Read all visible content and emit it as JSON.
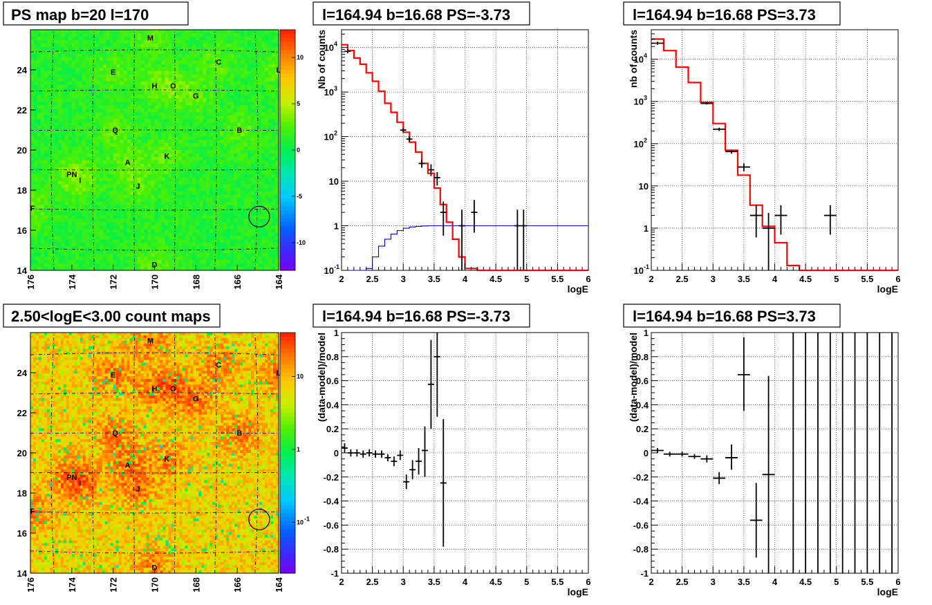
{
  "chart_data": [
    {
      "id": "ps-map",
      "type": "heatmap",
      "title": "PS map b=20 l=170",
      "x_ticks": [
        "176",
        "174",
        "172",
        "170",
        "168",
        "166",
        "164"
      ],
      "y_ticks": [
        "14",
        "16",
        "18",
        "20",
        "22",
        "24"
      ],
      "xlim": [
        176,
        164
      ],
      "ylim": [
        14,
        26
      ],
      "palette_ticks": [
        "10",
        "5",
        "0",
        "-5",
        "-10"
      ],
      "palette_range": [
        -13,
        13
      ],
      "colorscale": "linear",
      "base_level": 1.2,
      "sources": [
        {
          "label": "M",
          "l": 170.2,
          "b": 25.6
        },
        {
          "label": "C",
          "l": 166.9,
          "b": 24.4
        },
        {
          "label": "L",
          "l": 164.0,
          "b": 24.0
        },
        {
          "label": "E",
          "l": 172.0,
          "b": 23.9
        },
        {
          "label": "H",
          "l": 170.0,
          "b": 23.2
        },
        {
          "label": "O",
          "l": 169.1,
          "b": 23.2
        },
        {
          "label": "G",
          "l": 168.0,
          "b": 22.7
        },
        {
          "label": "Q",
          "l": 171.9,
          "b": 21.0
        },
        {
          "label": "B",
          "l": 165.9,
          "b": 21.0
        },
        {
          "label": "K",
          "l": 169.4,
          "b": 19.7
        },
        {
          "label": "A",
          "l": 171.3,
          "b": 19.4
        },
        {
          "label": "PN",
          "l": 174.0,
          "b": 18.8
        },
        {
          "label": "I",
          "l": 173.6,
          "b": 18.5
        },
        {
          "label": "J",
          "l": 170.8,
          "b": 18.2
        },
        {
          "label": "F",
          "l": 175.9,
          "b": 17.1
        },
        {
          "label": "D",
          "l": 170.0,
          "b": 14.3
        }
      ],
      "circle": {
        "l": 164.94,
        "b": 16.68
      }
    },
    {
      "id": "spec1",
      "type": "line",
      "title": "l=164.94 b=16.68 PS=-3.73",
      "xlabel": "logE",
      "ylabel": "Nb of counts",
      "xlim": [
        2,
        6
      ],
      "ylim": [
        0.1,
        25000
      ],
      "yscale": "log",
      "x_ticks": [
        "2",
        "2.5",
        "3",
        "3.5",
        "4",
        "4.5",
        "5",
        "5.5",
        "6"
      ],
      "y_ticks": [
        {
          "v": 0.1,
          "t": "10"
        },
        {
          "v": 1,
          "t": "1"
        },
        {
          "v": 10,
          "t": "10"
        },
        {
          "v": 100,
          "t": "10"
        },
        {
          "v": 1000,
          "t": "10"
        },
        {
          "v": 10000,
          "t": "10"
        }
      ],
      "y_tick_exponents": [
        "-1",
        "",
        "",
        "2",
        "3",
        "4"
      ],
      "model_edges": [
        2.0,
        2.1,
        2.2,
        2.3,
        2.4,
        2.5,
        2.6,
        2.7,
        2.8,
        2.9,
        3.0,
        3.1,
        3.2,
        3.3,
        3.4,
        3.5,
        3.6,
        3.7,
        3.8,
        3.9,
        4.0,
        4.1,
        4.2,
        4.3,
        6.0
      ],
      "model_values": [
        11500,
        8500,
        5800,
        4200,
        2700,
        1750,
        1050,
        560,
        350,
        210,
        125,
        75,
        45,
        25,
        15,
        7,
        3,
        1.2,
        0.5,
        0.2,
        0.11,
        0.11,
        0.09,
        0.09
      ],
      "step_edges": [
        2.0,
        2.1,
        2.2,
        2.3,
        2.4,
        2.5,
        2.6,
        2.7,
        2.8,
        2.9,
        3.0,
        3.1,
        3.2,
        3.3,
        3.4,
        3.5,
        3.6,
        3.7,
        3.8,
        3.9,
        4.0,
        4.1,
        4.2,
        6.0
      ],
      "step_values": [
        0.07,
        0.07,
        0.07,
        0.07,
        0.11,
        0.2,
        0.35,
        0.5,
        0.65,
        0.78,
        0.88,
        0.94,
        0.97,
        0.99,
        1.0,
        1.0,
        1.0,
        1.0,
        1.0,
        1.0,
        1.0,
        1.0,
        1.0
      ],
      "points": [
        {
          "x": 2.1,
          "y": 8200,
          "lo": 7400,
          "hi": 9000,
          "xw": 0.05
        },
        {
          "x": 3.0,
          "y": 140,
          "lo": 125,
          "hi": 155,
          "xw": 0.05
        },
        {
          "x": 3.1,
          "y": 88,
          "lo": 78,
          "hi": 98,
          "xw": 0.05
        },
        {
          "x": 3.3,
          "y": 25,
          "lo": 20,
          "hi": 30,
          "xw": 0.05
        },
        {
          "x": 3.45,
          "y": 18,
          "lo": 13,
          "hi": 24,
          "xw": 0.05
        },
        {
          "x": 3.55,
          "y": 12,
          "lo": 8,
          "hi": 16,
          "xw": 0.05
        },
        {
          "x": 3.65,
          "y": 2,
          "lo": 0.6,
          "hi": 3.5,
          "xw": 0.05
        },
        {
          "x": 3.95,
          "y": 1,
          "lo": 0.1,
          "hi": 2.3,
          "xw": 0.05
        },
        {
          "x": 4.15,
          "y": 2,
          "lo": 0.7,
          "hi": 3.8,
          "xw": 0.05
        },
        {
          "x": 4.85,
          "y": 1,
          "lo": 0.1,
          "hi": 2.3,
          "xw": 0.05
        },
        {
          "x": 4.95,
          "y": 1,
          "lo": 0.1,
          "hi": 2.3,
          "xw": 0.05
        }
      ]
    },
    {
      "id": "spec2",
      "type": "line",
      "title": "l=164.94 b=16.68 PS=3.73",
      "xlabel": "logE",
      "ylabel": "nb of counts",
      "xlim": [
        2,
        6
      ],
      "ylim": [
        0.1,
        50000
      ],
      "yscale": "log",
      "x_ticks": [
        "2",
        "2.5",
        "3",
        "3.5",
        "4",
        "4.5",
        "5",
        "5.5",
        "6"
      ],
      "y_ticks": [
        {
          "v": 0.1,
          "t": "10"
        },
        {
          "v": 1,
          "t": "1"
        },
        {
          "v": 10,
          "t": "10"
        },
        {
          "v": 100,
          "t": "10"
        },
        {
          "v": 1000,
          "t": "10"
        },
        {
          "v": 10000,
          "t": "10"
        }
      ],
      "y_tick_exponents": [
        "-1",
        "",
        "",
        "2",
        "3",
        "4"
      ],
      "model_edges": [
        2.0,
        2.2,
        2.4,
        2.6,
        2.8,
        3.0,
        3.2,
        3.4,
        3.6,
        3.8,
        4.0,
        4.2,
        4.4,
        6.0
      ],
      "model_values": [
        30000,
        16000,
        6500,
        2800,
        950,
        300,
        70,
        18,
        3.5,
        1.1,
        0.45,
        0.13,
        0.1
      ],
      "points": [
        {
          "x": 2.1,
          "y": 24000,
          "lo": 22000,
          "hi": 26000,
          "xw": 0.1
        },
        {
          "x": 2.9,
          "y": 900,
          "lo": 850,
          "hi": 950,
          "xw": 0.1
        },
        {
          "x": 3.1,
          "y": 220,
          "lo": 200,
          "hi": 240,
          "xw": 0.1
        },
        {
          "x": 3.3,
          "y": 65,
          "lo": 58,
          "hi": 72,
          "xw": 0.1
        },
        {
          "x": 3.5,
          "y": 28,
          "lo": 22,
          "hi": 34,
          "xw": 0.1
        },
        {
          "x": 3.7,
          "y": 2,
          "lo": 0.6,
          "hi": 3.5,
          "xw": 0.1
        },
        {
          "x": 3.9,
          "y": 1,
          "lo": 0.1,
          "hi": 2.3,
          "xw": 0.1
        },
        {
          "x": 4.1,
          "y": 2,
          "lo": 0.7,
          "hi": 3.5,
          "xw": 0.1
        },
        {
          "x": 4.9,
          "y": 2,
          "lo": 0.7,
          "hi": 3.5,
          "xw": 0.1
        }
      ]
    },
    {
      "id": "count-map",
      "type": "heatmap",
      "title": "2.50<logE<3.00 count maps",
      "x_ticks": [
        "176",
        "174",
        "172",
        "170",
        "168",
        "166",
        "164"
      ],
      "y_ticks": [
        "14",
        "16",
        "18",
        "20",
        "22",
        "24"
      ],
      "xlim": [
        176,
        164
      ],
      "ylim": [
        14,
        26
      ],
      "palette_ticks": [
        {
          "v": 10,
          "t": "10"
        },
        {
          "v": 1,
          "t": "1"
        },
        {
          "v": 0.1,
          "t": "10"
        }
      ],
      "palette_tick_exponents": [
        "",
        "",
        "-1"
      ],
      "palette_range": [
        0.02,
        40
      ],
      "colorscale": "log",
      "base_level": 8,
      "sources": [
        {
          "label": "M",
          "l": 170.2,
          "b": 25.6
        },
        {
          "label": "C",
          "l": 166.9,
          "b": 24.4
        },
        {
          "label": "L",
          "l": 164.0,
          "b": 24.0
        },
        {
          "label": "E",
          "l": 172.0,
          "b": 23.9
        },
        {
          "label": "H",
          "l": 170.0,
          "b": 23.2
        },
        {
          "label": "O",
          "l": 169.1,
          "b": 23.2
        },
        {
          "label": "G",
          "l": 168.0,
          "b": 22.7
        },
        {
          "label": "Q",
          "l": 171.9,
          "b": 21.0
        },
        {
          "label": "B",
          "l": 165.9,
          "b": 21.0
        },
        {
          "label": "K",
          "l": 169.4,
          "b": 19.7
        },
        {
          "label": "A",
          "l": 171.3,
          "b": 19.4
        },
        {
          "label": "PN",
          "l": 174.0,
          "b": 18.8
        },
        {
          "label": "I",
          "l": 173.6,
          "b": 18.5
        },
        {
          "label": "J",
          "l": 170.8,
          "b": 18.2
        },
        {
          "label": "F",
          "l": 175.9,
          "b": 17.1
        },
        {
          "label": "D",
          "l": 170.0,
          "b": 14.3
        }
      ],
      "circle": {
        "l": 164.94,
        "b": 16.68
      }
    },
    {
      "id": "resid1",
      "type": "scatter",
      "title": "l=164.94 b=16.68 PS=-3.73",
      "xlabel": "logE",
      "ylabel": "(data-model)/model",
      "xlim": [
        2,
        6
      ],
      "ylim": [
        -1,
        1
      ],
      "x_ticks": [
        "2",
        "2.5",
        "3",
        "3.5",
        "4",
        "4.5",
        "5",
        "5.5",
        "6"
      ],
      "y_ticks": [
        "-1",
        "-0.8",
        "-0.6",
        "-0.4",
        "-0.2",
        "0",
        "0.2",
        "0.4",
        "0.6",
        "0.8",
        "1"
      ],
      "points": [
        {
          "x": 2.05,
          "y": 0.04,
          "lo": 0.0,
          "hi": 0.08,
          "xw": 0.05
        },
        {
          "x": 2.15,
          "y": 0.0,
          "lo": -0.03,
          "hi": 0.03,
          "xw": 0.05
        },
        {
          "x": 2.25,
          "y": 0.0,
          "lo": -0.03,
          "hi": 0.03,
          "xw": 0.05
        },
        {
          "x": 2.35,
          "y": -0.01,
          "lo": -0.04,
          "hi": 0.02,
          "xw": 0.05
        },
        {
          "x": 2.45,
          "y": 0.0,
          "lo": -0.03,
          "hi": 0.03,
          "xw": 0.05
        },
        {
          "x": 2.55,
          "y": -0.01,
          "lo": -0.04,
          "hi": 0.02,
          "xw": 0.05
        },
        {
          "x": 2.65,
          "y": -0.01,
          "lo": -0.04,
          "hi": 0.02,
          "xw": 0.05
        },
        {
          "x": 2.75,
          "y": -0.04,
          "lo": -0.07,
          "hi": -0.01,
          "xw": 0.05
        },
        {
          "x": 2.85,
          "y": -0.07,
          "lo": -0.11,
          "hi": -0.03,
          "xw": 0.05
        },
        {
          "x": 2.95,
          "y": -0.02,
          "lo": -0.06,
          "hi": 0.02,
          "xw": 0.05
        },
        {
          "x": 3.05,
          "y": -0.24,
          "lo": -0.3,
          "hi": -0.18,
          "xw": 0.05
        },
        {
          "x": 3.15,
          "y": -0.14,
          "lo": -0.22,
          "hi": -0.06,
          "xw": 0.05
        },
        {
          "x": 3.25,
          "y": -0.07,
          "lo": -0.18,
          "hi": 0.04,
          "xw": 0.05
        },
        {
          "x": 3.35,
          "y": 0.02,
          "lo": -0.2,
          "hi": 0.22,
          "xw": 0.05
        },
        {
          "x": 3.45,
          "y": 0.57,
          "lo": 0.2,
          "hi": 0.94,
          "xw": 0.05
        },
        {
          "x": 3.55,
          "y": 0.8,
          "lo": 0.3,
          "hi": 1.0,
          "xw": 0.05
        },
        {
          "x": 3.65,
          "y": -0.25,
          "lo": -0.78,
          "hi": 0.28,
          "xw": 0.05
        }
      ],
      "off_scale_bars": []
    },
    {
      "id": "resid2",
      "type": "scatter",
      "title": "l=164.94 b=16.68 PS=3.73",
      "xlabel": "logE",
      "ylabel": "(data-model)/model",
      "xlim": [
        2,
        6
      ],
      "ylim": [
        -1,
        1
      ],
      "x_ticks": [
        "2",
        "2.5",
        "3",
        "3.5",
        "4",
        "4.5",
        "5",
        "5.5",
        "6"
      ],
      "y_ticks": [
        "-1",
        "-0.8",
        "-0.6",
        "-0.4",
        "-0.2",
        "0",
        "0.2",
        "0.4",
        "0.6",
        "0.8",
        "1"
      ],
      "points": [
        {
          "x": 2.1,
          "y": 0.02,
          "lo": 0.0,
          "hi": 0.04,
          "xw": 0.1
        },
        {
          "x": 2.3,
          "y": -0.01,
          "lo": -0.03,
          "hi": 0.01,
          "xw": 0.1
        },
        {
          "x": 2.5,
          "y": -0.01,
          "lo": -0.03,
          "hi": 0.01,
          "xw": 0.1
        },
        {
          "x": 2.7,
          "y": -0.03,
          "lo": -0.05,
          "hi": -0.01,
          "xw": 0.1
        },
        {
          "x": 2.9,
          "y": -0.05,
          "lo": -0.08,
          "hi": -0.02,
          "xw": 0.1
        },
        {
          "x": 3.1,
          "y": -0.21,
          "lo": -0.26,
          "hi": -0.16,
          "xw": 0.1
        },
        {
          "x": 3.3,
          "y": -0.04,
          "lo": -0.14,
          "hi": 0.07,
          "xw": 0.1
        },
        {
          "x": 3.5,
          "y": 0.65,
          "lo": 0.35,
          "hi": 0.96,
          "xw": 0.1
        },
        {
          "x": 3.7,
          "y": -0.56,
          "lo": -0.87,
          "hi": -0.25,
          "xw": 0.1
        },
        {
          "x": 3.9,
          "y": -0.18,
          "lo": -1.0,
          "hi": 0.64,
          "xw": 0.1
        }
      ],
      "off_scale_bars": [
        4.3,
        4.5,
        4.7,
        4.9,
        5.1,
        5.3,
        5.5,
        5.7,
        5.9
      ]
    }
  ],
  "colors": {
    "model_line": "#ff0000",
    "step_line": "#0000cc",
    "data_points": "#000000",
    "grid": "#000000"
  }
}
